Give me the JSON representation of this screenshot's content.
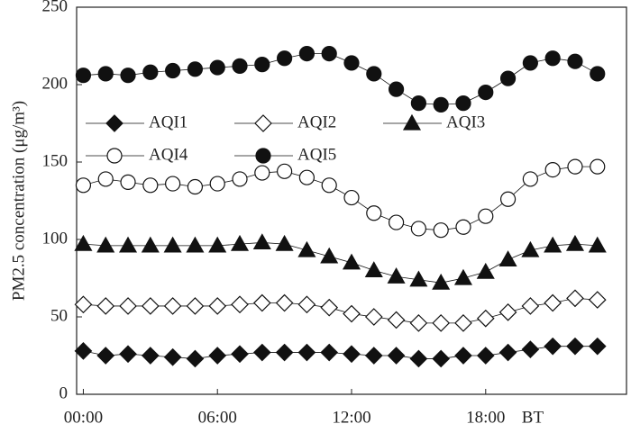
{
  "chart_data": {
    "type": "line",
    "ylabel": "PM2.5 concentration (μg/m³)",
    "xlabel": "BT",
    "x": [
      0,
      1,
      2,
      3,
      4,
      5,
      6,
      7,
      8,
      9,
      10,
      11,
      12,
      13,
      14,
      15,
      16,
      17,
      18,
      19,
      20,
      21,
      22,
      23
    ],
    "xlim": [
      -0.3,
      24.3
    ],
    "xticks": [
      {
        "value": 0,
        "label": "00:00"
      },
      {
        "value": 6,
        "label": "06:00"
      },
      {
        "value": 12,
        "label": "12:00"
      },
      {
        "value": 18,
        "label": "18:00"
      }
    ],
    "ylim": [
      0,
      250
    ],
    "yticks": [
      0,
      50,
      100,
      150,
      200,
      250
    ],
    "series": [
      {
        "name": "AQI1",
        "color": "#111",
        "marker": "diamond",
        "marker_fill": "#111",
        "values": [
          28,
          25,
          26,
          25,
          24,
          23,
          25,
          26,
          27,
          27,
          27,
          27,
          26,
          25,
          25,
          23,
          23,
          25,
          25,
          27,
          29,
          31,
          31,
          31
        ]
      },
      {
        "name": "AQI2",
        "color": "#111",
        "marker": "diamond",
        "marker_fill": "#fff",
        "values": [
          58,
          57,
          57,
          57,
          57,
          57,
          57,
          58,
          59,
          59,
          58,
          56,
          52,
          50,
          48,
          46,
          46,
          46,
          49,
          53,
          57,
          59,
          62,
          61
        ]
      },
      {
        "name": "AQI3",
        "color": "#111",
        "marker": "triangle",
        "marker_fill": "#111",
        "values": [
          97,
          96,
          96,
          96,
          96,
          96,
          96,
          97,
          98,
          97,
          93,
          89,
          85,
          80,
          76,
          74,
          72,
          75,
          79,
          87,
          93,
          96,
          97,
          96
        ]
      },
      {
        "name": "AQI4",
        "color": "#111",
        "marker": "circle",
        "marker_fill": "#fff",
        "values": [
          135,
          139,
          137,
          135,
          136,
          134,
          136,
          139,
          143,
          144,
          140,
          135,
          127,
          117,
          111,
          107,
          106,
          108,
          115,
          126,
          139,
          145,
          147,
          147
        ]
      },
      {
        "name": "AQI5",
        "color": "#111",
        "marker": "circle",
        "marker_fill": "#111",
        "values": [
          206,
          207,
          206,
          208,
          209,
          210,
          211,
          212,
          213,
          217,
          220,
          220,
          214,
          207,
          197,
          188,
          187,
          188,
          195,
          204,
          214,
          217,
          215,
          207
        ]
      }
    ]
  }
}
